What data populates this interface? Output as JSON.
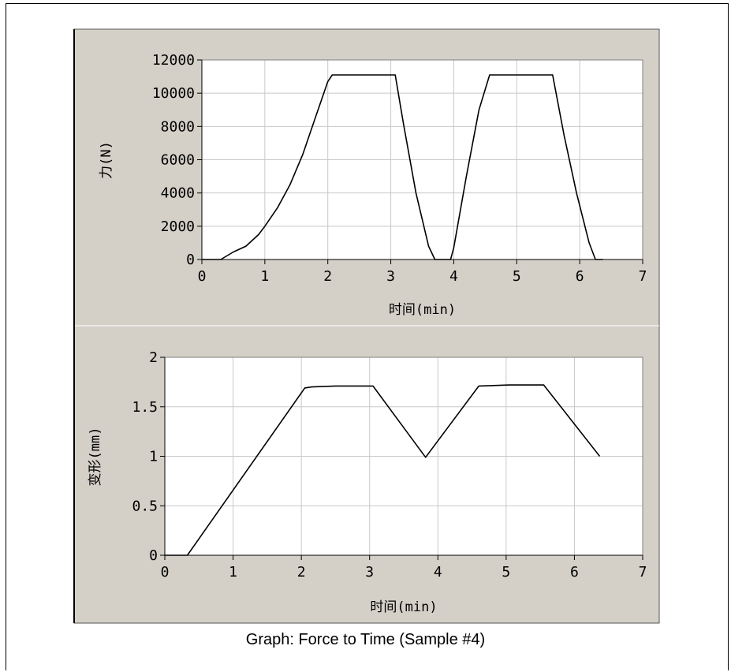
{
  "caption": "Graph: Force to Time (Sample #4)",
  "colors": {
    "panel_bg": "#d4d0c8",
    "plot_bg": "#ffffff",
    "grid": "#c8c8c8",
    "line": "#000000"
  },
  "chart_data": [
    {
      "type": "line",
      "xlabel": "时间(min)",
      "ylabel": "力(N)",
      "xlim": [
        0,
        7
      ],
      "ylim": [
        0,
        12000
      ],
      "xticks": [
        0,
        1,
        2,
        3,
        4,
        5,
        6,
        7
      ],
      "yticks": [
        0,
        2000,
        4000,
        6000,
        8000,
        10000,
        12000
      ],
      "grid": true,
      "series": [
        {
          "x": [
            0,
            0.3,
            0.5,
            0.7,
            0.9,
            1.0,
            1.2,
            1.4,
            1.6,
            1.8,
            2.0,
            2.07,
            3.07,
            3.2,
            3.4,
            3.6,
            3.7,
            3.95,
            4.0,
            4.2,
            4.4,
            4.57,
            5.57,
            5.75,
            5.95,
            6.15,
            6.25,
            6.37
          ],
          "y": [
            0,
            0,
            450,
            800,
            1500,
            2000,
            3100,
            4500,
            6300,
            8500,
            10700,
            11100,
            11100,
            8200,
            4000,
            800,
            0,
            0,
            700,
            5000,
            9000,
            11100,
            11100,
            7500,
            4000,
            1000,
            0,
            0
          ]
        }
      ]
    },
    {
      "type": "line",
      "xlabel": "时间(min)",
      "ylabel": "变形(mm)",
      "xlim": [
        0,
        7
      ],
      "ylim": [
        0,
        2
      ],
      "xticks": [
        0,
        1,
        2,
        3,
        4,
        5,
        6,
        7
      ],
      "yticks": [
        0,
        0.5,
        1,
        1.5,
        2
      ],
      "grid": true,
      "series": [
        {
          "x": [
            0,
            0.33,
            2.05,
            2.15,
            2.5,
            3.05,
            3.82,
            4.6,
            5.05,
            5.55,
            6.37
          ],
          "y": [
            0,
            0,
            1.69,
            1.7,
            1.71,
            1.71,
            0.99,
            1.71,
            1.72,
            1.72,
            1.0
          ]
        }
      ]
    }
  ]
}
